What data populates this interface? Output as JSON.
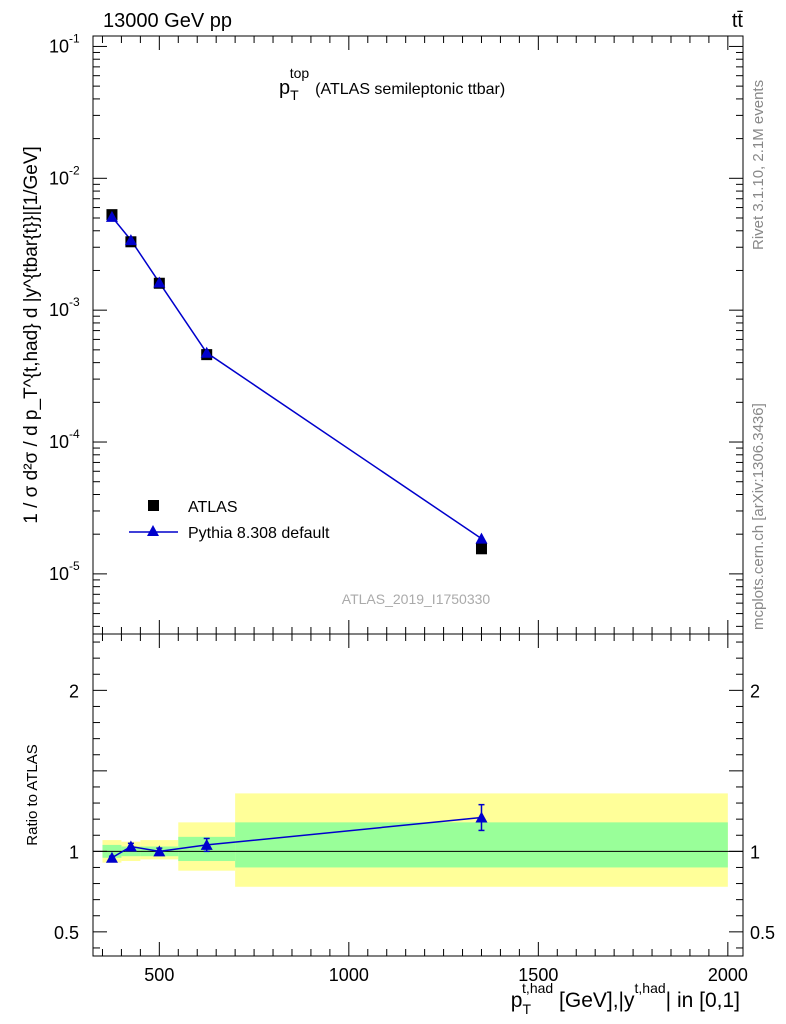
{
  "header": {
    "energy_label": "13000 GeV pp",
    "process_label": "tt̄"
  },
  "side_labels": {
    "rivet": "Rivet 3.1.10,  2.1M events",
    "mcplots": "mcplots.cern.ch [arXiv:1306.3436]"
  },
  "chart_data": [
    {
      "type": "scatter",
      "panel": "main",
      "title": "p_T^top (ATLAS semileptonic ttbar)",
      "title_main": "p",
      "title_sub": "T",
      "title_sup": "top",
      "title_rest": "(ATLAS semileptonic ttbar)",
      "analysis_id": "ATLAS_2019_I1750330",
      "ylabel": "1 / σ d²σ / d p_T^{t,had} d |y^{tbar{t}}|[1/GeV]",
      "yscale": "log",
      "xlim": [
        325,
        2040
      ],
      "ylim": [
        3.5e-06,
        0.12
      ],
      "y_ticks": [
        {
          "value": 1e-05,
          "label": "10",
          "exp": "-5"
        },
        {
          "value": 0.0001,
          "label": "10",
          "exp": "-4"
        },
        {
          "value": 0.001,
          "label": "10",
          "exp": "-3"
        },
        {
          "value": 0.01,
          "label": "10",
          "exp": "-2"
        },
        {
          "value": 0.1,
          "label": "10",
          "exp": "-1"
        }
      ],
      "legend": {
        "placement": "bottom-left",
        "entries": [
          "ATLAS",
          "Pythia 8.308 default"
        ]
      },
      "series": [
        {
          "name": "ATLAS",
          "marker": "square",
          "color": "#000000",
          "x": [
            375,
            425,
            500,
            625,
            1350
          ],
          "y": [
            0.0053,
            0.0033,
            0.0016,
            0.00046,
            1.55e-05
          ]
        },
        {
          "name": "Pythia 8.308 default",
          "marker": "triangle",
          "color": "#0000cc",
          "x": [
            375,
            425,
            500,
            625,
            1350
          ],
          "y": [
            0.0051,
            0.0034,
            0.00162,
            0.000475,
            1.85e-05
          ],
          "yerr": [
            0,
            0,
            0,
            0,
            1.5e-06
          ]
        }
      ]
    },
    {
      "type": "scatter",
      "panel": "ratio",
      "ylabel": "Ratio to ATLAS",
      "xlabel": "p_T^{t,had} [GeV],|y^{t,had}| in [0,1]",
      "xlabel_main": "p",
      "xlabel_sub": "T",
      "xlabel_sup": "t,had",
      "xlabel_mid": " [GeV],|y",
      "xlabel_sup2": "t,had",
      "xlabel_rest": "| in [0,1]",
      "xlim": [
        325,
        2040
      ],
      "ylim": [
        0.35,
        2.35
      ],
      "x_ticks": [
        500,
        1000,
        1500,
        2000
      ],
      "y_ticks": [
        0.5,
        1,
        2
      ],
      "reference_line": 1,
      "bands": [
        {
          "x0": 350,
          "x1": 400,
          "inner": [
            0.96,
            1.04
          ],
          "outer": [
            0.93,
            1.07
          ]
        },
        {
          "x0": 400,
          "x1": 450,
          "inner": [
            0.97,
            1.03
          ],
          "outer": [
            0.94,
            1.06
          ]
        },
        {
          "x0": 450,
          "x1": 550,
          "inner": [
            0.97,
            1.03
          ],
          "outer": [
            0.95,
            1.07
          ]
        },
        {
          "x0": 550,
          "x1": 700,
          "inner": [
            0.94,
            1.09
          ],
          "outer": [
            0.88,
            1.18
          ]
        },
        {
          "x0": 700,
          "x1": 2000,
          "inner": [
            0.9,
            1.18
          ],
          "outer": [
            0.78,
            1.36
          ]
        }
      ],
      "band_colors": {
        "inner": "#99ff99",
        "outer": "#ffff99"
      },
      "series": [
        {
          "name": "Pythia 8.308 default",
          "marker": "triangle",
          "color": "#0000cc",
          "x": [
            375,
            425,
            500,
            625,
            1350
          ],
          "y": [
            0.96,
            1.03,
            1.0,
            1.04,
            1.21
          ],
          "yerr": [
            0.01,
            0.02,
            0.02,
            0.04,
            0.08
          ]
        }
      ]
    }
  ]
}
